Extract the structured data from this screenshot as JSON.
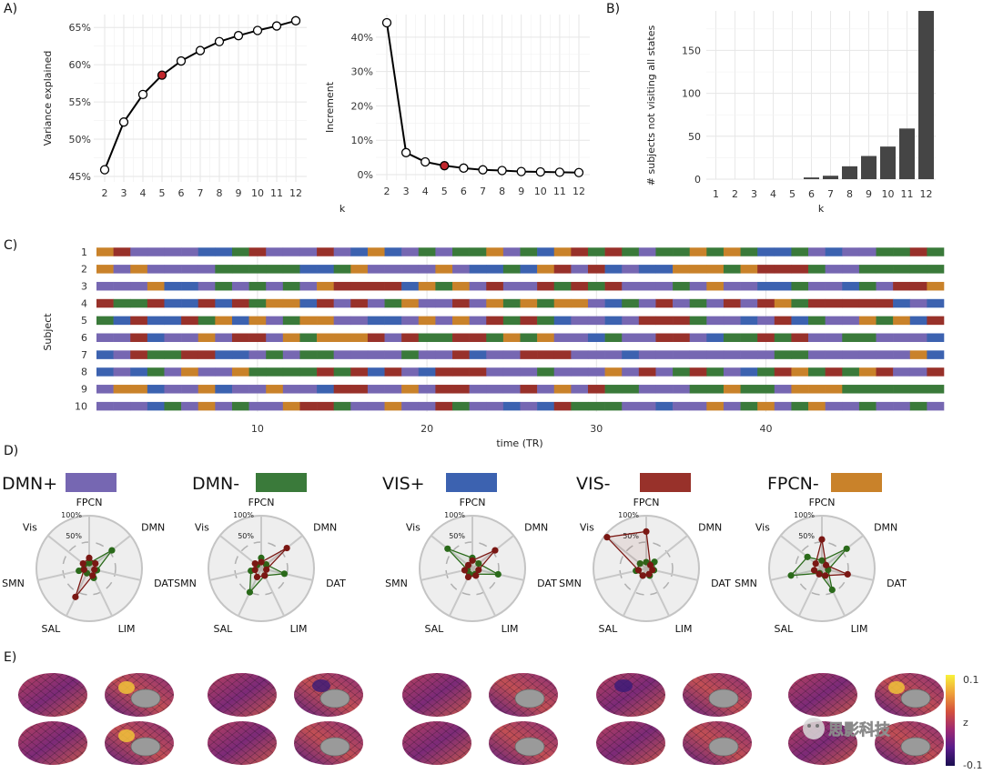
{
  "panels": {
    "a": "A)",
    "b": "B)",
    "c": "C)",
    "d": "D)",
    "e": "E)"
  },
  "variance_chart": {
    "type": "line",
    "ylabel": "Variance explained",
    "x": [
      2,
      3,
      4,
      5,
      6,
      7,
      8,
      9,
      10,
      11,
      12
    ],
    "values": [
      45.9,
      52.3,
      56.0,
      58.6,
      60.5,
      61.9,
      63.1,
      63.9,
      64.6,
      65.2,
      65.9
    ],
    "highlight_x": 5,
    "ylim": [
      45,
      66
    ],
    "yticks": [
      "45%",
      "50%",
      "55%",
      "60%",
      "65%"
    ],
    "ytick_values": [
      45,
      50,
      55,
      60,
      65
    ],
    "colors": {
      "line": "#000000",
      "highlight": "#c0262c",
      "point_fill": "#ffffff"
    }
  },
  "increment_chart": {
    "type": "line",
    "ylabel": "Increment",
    "xlabel": "k",
    "x": [
      2,
      3,
      4,
      5,
      6,
      7,
      8,
      9,
      10,
      11,
      12
    ],
    "values": [
      44.2,
      6.4,
      3.7,
      2.6,
      1.9,
      1.4,
      1.2,
      0.9,
      0.8,
      0.7,
      0.6
    ],
    "highlight_x": 5,
    "ylim": [
      0,
      45
    ],
    "yticks": [
      "0%",
      "10%",
      "20%",
      "30%",
      "40%"
    ],
    "ytick_values": [
      0,
      10,
      20,
      30,
      40
    ]
  },
  "subjects_chart": {
    "type": "bar",
    "ylabel": "# subjects not visiting all states",
    "xlabel": "k",
    "categories": [
      "1",
      "2",
      "3",
      "4",
      "5",
      "6",
      "7",
      "8",
      "9",
      "10",
      "11",
      "12"
    ],
    "values": [
      0,
      0,
      0,
      0,
      0,
      2,
      4,
      15,
      27,
      38,
      59,
      196
    ],
    "ylim": [
      0,
      196
    ],
    "yticks": [
      "0",
      "50",
      "100",
      "150"
    ],
    "ytick_values": [
      0,
      50,
      100,
      150
    ],
    "colors": {
      "bar": "#454545"
    }
  },
  "state_sequence": {
    "type": "heatmap",
    "ylabel": "Subject",
    "xlabel": "time (TR)",
    "subjects": [
      "1",
      "2",
      "3",
      "4",
      "5",
      "6",
      "7",
      "8",
      "9",
      "10"
    ],
    "xticks": [
      "10",
      "20",
      "30",
      "40"
    ],
    "xtick_values": [
      10,
      20,
      30,
      40
    ],
    "n_tr": 50,
    "codes": {
      "P": "DMN+",
      "G": "DMN-",
      "B": "VIS+",
      "R": "VIS-",
      "O": "FPCN-"
    },
    "rows": [
      "ORPPPPBBGRPPPRPBOBPGPGGOPGBORGRGPGGOGOGBBGPBPPGGRG",
      "OPOPPPPGGGGGBBGOPPPPOPBBGBORPRBPBBOOOGORRRGPPGGGGG",
      "PPPOBBPGPGPGPORRRRBOGOPRPPRGRGRPPPGPOPPBBGPPBGPRRO",
      "RGGRBBRBRGOOBRPRPGOPPRPOGOGOOPBGPRPGPRPROGRRRRRBPB",
      "GBRBBRGOBOPGOOPPBBPOPOPRGRGBPPBPRRRGPPBPRBGPPOGOBR",
      "PPRBPPOPRRPOGOOORPRGGRRGOGOPPBGPPRRPBGGRGRPPGGPPPB",
      "BPRGGRRBBPGPGGPPPPGPPRBPPRRRPPPBPPPPPPPPGGPPPPPPOB",
      "BPBGPOPPOGGGGRGRBRPBRRRPPPGPPPOPRPGRGPBGROGRGORPPR",
      "POOBPPOBPPOPPBRRPPOPRRPPPRPOPRGGPPPGGOGGPOOOGGGGGG",
      "PPPBGPOPGPPORRGPPOPPRGPPBPBRGGGPPBPPOPGOPGOPPGPPGP"
    ]
  },
  "legend_states": [
    {
      "name": "DMN+",
      "color": "#7667b2"
    },
    {
      "name": "DMN-",
      "color": "#3a7a3a"
    },
    {
      "name": "VIS+",
      "color": "#3c62b0"
    },
    {
      "name": "VIS-",
      "color": "#98312a"
    },
    {
      "name": "FPCN-",
      "color": "#c9822a"
    }
  ],
  "radar": {
    "axes": [
      "FPCN",
      "DMN",
      "DAT",
      "LIM",
      "SAL",
      "SMN",
      "Vis"
    ],
    "pct_labels": [
      "100%",
      "50%"
    ],
    "colors": {
      "pos": "#7a1713",
      "neg": "#2a6a1a"
    },
    "states": [
      {
        "name": "DMN+",
        "pos": [
          20,
          15,
          10,
          15,
          60,
          10,
          15
        ],
        "neg": [
          10,
          55,
          15,
          20,
          10,
          20,
          12
        ]
      },
      {
        "name": "DMN-",
        "pos": [
          12,
          62,
          10,
          15,
          18,
          12,
          15
        ],
        "neg": [
          20,
          12,
          45,
          15,
          50,
          20,
          10
        ]
      },
      {
        "name": "VIS+",
        "pos": [
          15,
          55,
          12,
          15,
          18,
          15,
          10
        ],
        "neg": [
          20,
          15,
          50,
          12,
          12,
          10,
          60
        ]
      },
      {
        "name": "VIS-",
        "pos": [
          70,
          10,
          12,
          12,
          15,
          15,
          95
        ],
        "neg": [
          12,
          20,
          15,
          15,
          15,
          20,
          15
        ]
      },
      {
        "name": "FPCN-",
        "pos": [
          55,
          10,
          50,
          15,
          12,
          15,
          15
        ],
        "neg": [
          15,
          60,
          12,
          45,
          10,
          60,
          35
        ]
      }
    ]
  },
  "colorbar": {
    "label": "z",
    "top": "0.1",
    "bottom": "-0.1",
    "colors": [
      "#f8f23a",
      "#f0a23a",
      "#d4513c",
      "#9e2a72",
      "#5a1c8a",
      "#1a0f50"
    ]
  },
  "watermark": {
    "text": "思影科技"
  }
}
